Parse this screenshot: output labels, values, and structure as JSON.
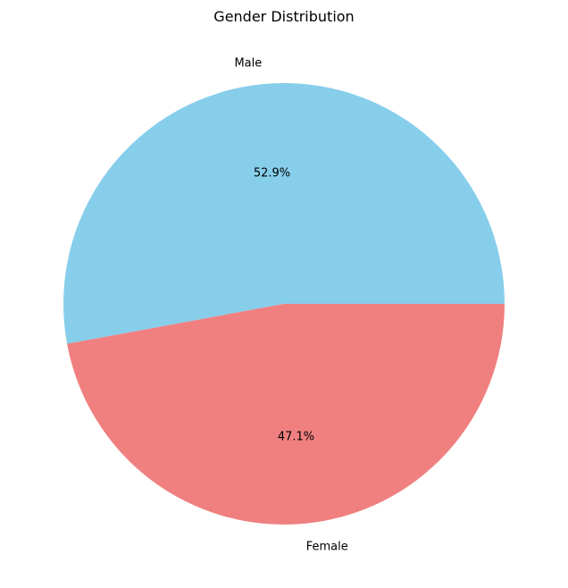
{
  "chart_data": {
    "type": "pie",
    "title": "Gender Distribution",
    "categories": [
      "Male",
      "Female"
    ],
    "values": [
      52.9,
      47.1
    ],
    "percent_labels": [
      "52.9%",
      "47.1%"
    ],
    "colors": [
      "#87CEEB",
      "#F08080"
    ],
    "start_angle_deg": 0,
    "direction": "counterclockwise",
    "legend": "none"
  }
}
